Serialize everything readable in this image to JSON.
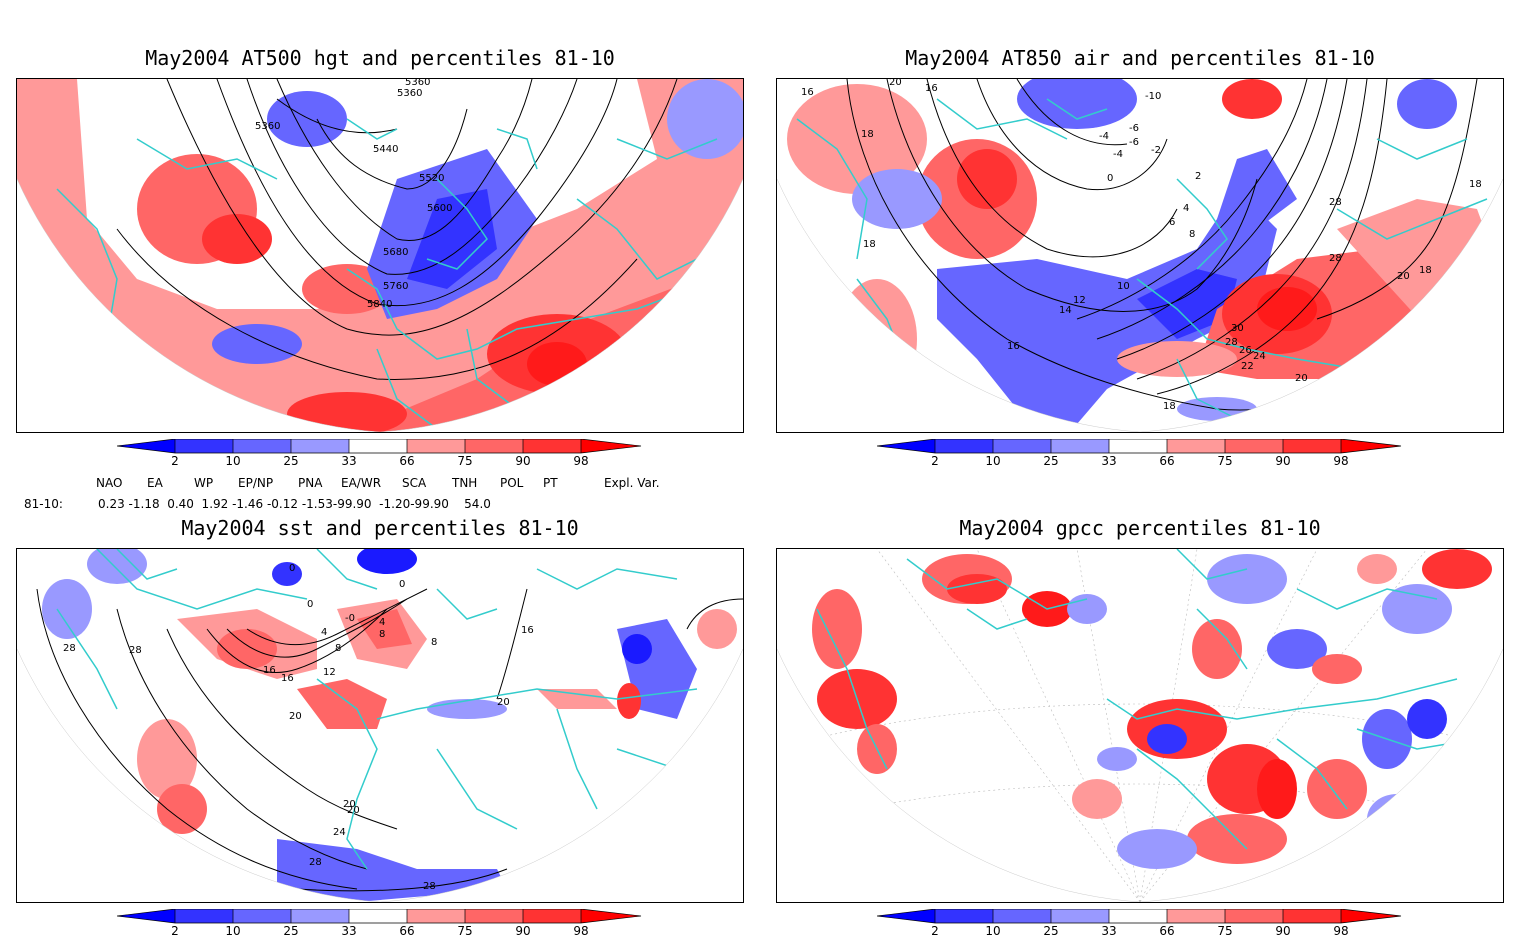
{
  "panels": {
    "p1": {
      "title": "May2004 AT500 hgt and percentiles 81-10",
      "contour_labels": [
        "5360",
        "5360",
        "5360",
        "5440",
        "5520",
        "5600",
        "5680",
        "5760",
        "5840"
      ]
    },
    "p2": {
      "title": "May2004 AT850 air and percentiles 81-10",
      "contour_labels": [
        "20",
        "16",
        "16",
        "18",
        "18",
        "-10",
        "-4",
        "-6",
        "-4",
        "-2",
        "-6",
        "0",
        "2",
        "4",
        "6",
        "8",
        "10",
        "12",
        "14",
        "16",
        "28",
        "28",
        "20",
        "18",
        "18",
        "30",
        "28",
        "26",
        "24",
        "22",
        "20",
        "18"
      ]
    },
    "p3": {
      "title": "May2004 sst and percentiles 81-10",
      "contour_labels": [
        "0",
        "0",
        "-0",
        "0",
        "4",
        "8",
        "4",
        "8",
        "8",
        "12",
        "16",
        "16",
        "28",
        "28",
        "20",
        "20",
        "20",
        "24",
        "28",
        "28",
        "16",
        "20"
      ]
    },
    "p4": {
      "title": "May2004 gpcc percentiles 81-10",
      "contour_labels": []
    }
  },
  "colorbar": {
    "labels": [
      "2",
      "10",
      "25",
      "33",
      "66",
      "75",
      "90",
      "98"
    ],
    "colors": [
      "#0000ff",
      "#3333ff",
      "#6666ff",
      "#9999ff",
      "#ff9999",
      "#ff6666",
      "#ff3333",
      "#ff0000"
    ]
  },
  "teleconnection_table": {
    "headers": [
      "NAO",
      "EA",
      "WP",
      "EP/NP",
      "PNA",
      "EA/WR",
      "SCA",
      "TNH",
      "POL",
      "PT",
      "Expl. Var."
    ],
    "row_label": "81-10:",
    "values": "0.23 -1.18  0.40  1.92 -1.46 -0.12 -1.53-99.90  -1.20-99.90    54.0"
  },
  "map_colors": {
    "coast": "#33cccc",
    "blue_med": "#6666ff",
    "blue_light": "#9999ff",
    "blue_dark": "#1a1aff",
    "red_light": "#ff9999",
    "red_med": "#ff6666",
    "red_dark": "#ff1a1a"
  }
}
